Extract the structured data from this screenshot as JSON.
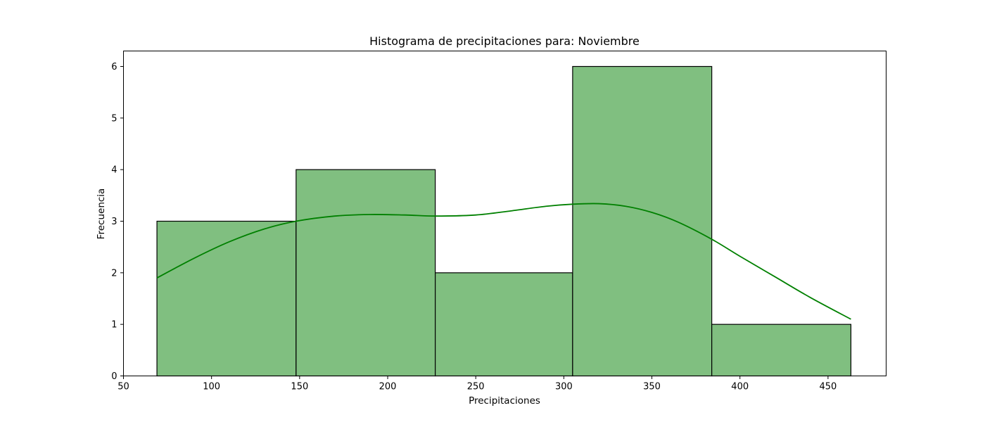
{
  "chart_data": {
    "type": "bar",
    "title": "Histograma de precipitaciones para: Noviembre",
    "xlabel": "Precipitaciones",
    "ylabel": "Frecuencia",
    "xlim": [
      50,
      483
    ],
    "ylim": [
      0,
      6.3
    ],
    "xticks": [
      50,
      100,
      150,
      200,
      250,
      300,
      350,
      400,
      450
    ],
    "yticks": [
      0,
      1,
      2,
      3,
      4,
      5,
      6
    ],
    "bins": [
      {
        "x0": 69,
        "x1": 148,
        "count": 3
      },
      {
        "x0": 148,
        "x1": 227,
        "count": 4
      },
      {
        "x0": 227,
        "x1": 305,
        "count": 2
      },
      {
        "x0": 305,
        "x1": 384,
        "count": 6
      },
      {
        "x0": 384,
        "x1": 463,
        "count": 1
      }
    ],
    "kde": {
      "x": [
        69,
        90,
        110,
        130,
        148,
        170,
        190,
        210,
        227,
        250,
        270,
        290,
        305,
        320,
        335,
        350,
        365,
        384,
        400,
        420,
        440,
        463
      ],
      "y": [
        1.9,
        2.28,
        2.6,
        2.85,
        3.0,
        3.1,
        3.13,
        3.12,
        3.1,
        3.12,
        3.2,
        3.29,
        3.33,
        3.34,
        3.29,
        3.17,
        2.98,
        2.65,
        2.32,
        1.92,
        1.52,
        1.1
      ]
    },
    "bar_color": "#80bf80",
    "bar_edge_color": "#000000",
    "kde_color": "#008000",
    "grid": false
  }
}
